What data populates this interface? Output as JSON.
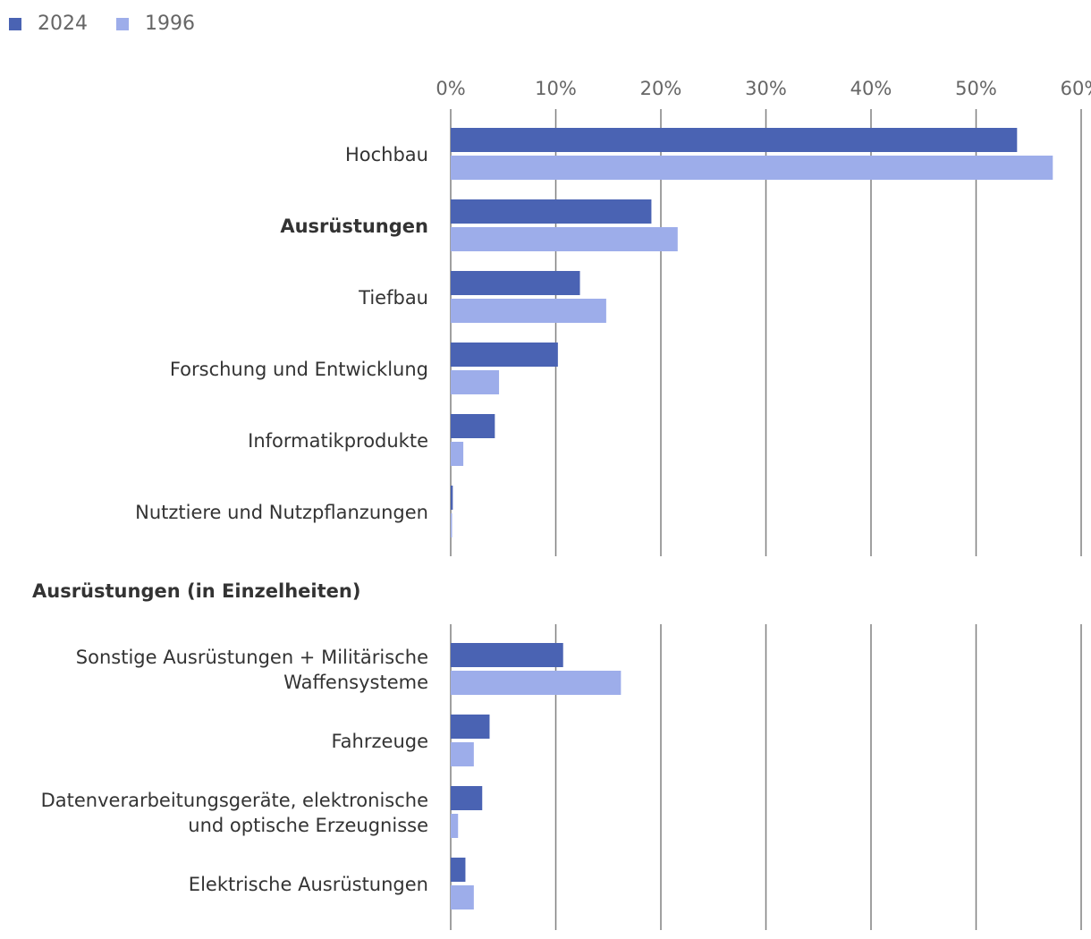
{
  "chart_data": {
    "type": "bar",
    "orientation": "horizontal",
    "colors": {
      "2024": "#4a63b3",
      "1996": "#9dadea",
      "grid": "#808080"
    },
    "legend": [
      {
        "name": "2024",
        "color": "#4a63b3"
      },
      {
        "name": "1996",
        "color": "#9dadea"
      }
    ],
    "xlim": [
      0,
      60
    ],
    "x_ticks": [
      {
        "value": 0,
        "label": "0%"
      },
      {
        "value": 10,
        "label": "10%"
      },
      {
        "value": 20,
        "label": "20%"
      },
      {
        "value": 30,
        "label": "30%"
      },
      {
        "value": 40,
        "label": "40%"
      },
      {
        "value": 50,
        "label": "50%"
      },
      {
        "value": 60,
        "label": "60%"
      }
    ],
    "panels": [
      {
        "title": "",
        "categories": [
          {
            "lines": [
              "Hochbau"
            ],
            "bold": false,
            "values": [
              53.9,
              57.3
            ]
          },
          {
            "lines": [
              "Ausrüstungen"
            ],
            "bold": true,
            "values": [
              19.1,
              21.6
            ]
          },
          {
            "lines": [
              "Tiefbau"
            ],
            "bold": false,
            "values": [
              12.3,
              14.8
            ]
          },
          {
            "lines": [
              "Forschung und Entwicklung"
            ],
            "bold": false,
            "values": [
              10.2,
              4.6
            ]
          },
          {
            "lines": [
              "Informatikprodukte"
            ],
            "bold": false,
            "values": [
              4.2,
              1.2
            ]
          },
          {
            "lines": [
              "Nutztiere und Nutzpflanzungen"
            ],
            "bold": false,
            "values": [
              0.2,
              0.1
            ]
          }
        ]
      },
      {
        "title": "Ausrüstungen (in Einzelheiten)",
        "categories": [
          {
            "lines": [
              "Sonstige Ausrüstungen + Militärische",
              "Waffensysteme"
            ],
            "bold": false,
            "values": [
              10.7,
              16.2
            ]
          },
          {
            "lines": [
              "Fahrzeuge"
            ],
            "bold": false,
            "values": [
              3.7,
              2.2
            ]
          },
          {
            "lines": [
              "Datenverarbeitungsgeräte, elektronische",
              "und optische Erzeugnisse"
            ],
            "bold": false,
            "values": [
              3.0,
              0.7
            ]
          },
          {
            "lines": [
              "Elektrische Ausrüstungen"
            ],
            "bold": false,
            "values": [
              1.4,
              2.2
            ]
          }
        ]
      }
    ],
    "series": [
      "2024",
      "1996"
    ]
  }
}
